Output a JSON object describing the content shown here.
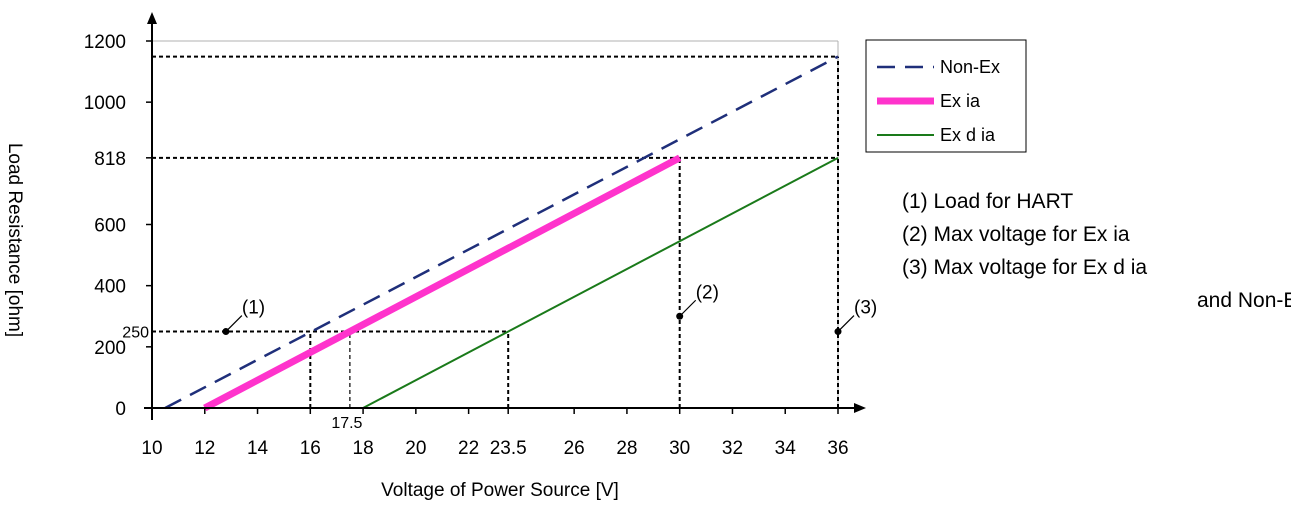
{
  "chart_data": {
    "type": "line",
    "title": "",
    "xlabel": "Voltage of Power Source [V]",
    "ylabel": "Load Resistance [ohm]",
    "xlim": [
      10,
      36
    ],
    "ylim": [
      0,
      1200
    ],
    "x_ticks": [
      {
        "value": 10,
        "label": "10"
      },
      {
        "value": 12,
        "label": "12"
      },
      {
        "value": 14,
        "label": "14"
      },
      {
        "value": 16,
        "label": "16"
      },
      {
        "value": 18,
        "label": "18"
      },
      {
        "value": 20,
        "label": "20"
      },
      {
        "value": 22,
        "label": "22"
      },
      {
        "value": 23.5,
        "label": "23.5"
      },
      {
        "value": 26,
        "label": "26"
      },
      {
        "value": 28,
        "label": "28"
      },
      {
        "value": 30,
        "label": "30"
      },
      {
        "value": 32,
        "label": "32"
      },
      {
        "value": 34,
        "label": "34"
      },
      {
        "value": 36,
        "label": "36"
      }
    ],
    "x_extra_ticks": [
      {
        "value": 17.5,
        "label": "17.5"
      }
    ],
    "y_ticks": [
      {
        "value": 0,
        "label": "0"
      },
      {
        "value": 200,
        "label": "200"
      },
      {
        "value": 400,
        "label": "400"
      },
      {
        "value": 600,
        "label": "600"
      },
      {
        "value": 818,
        "label": "818"
      },
      {
        "value": 1000,
        "label": "1000"
      },
      {
        "value": 1200,
        "label": "1200"
      }
    ],
    "y_extra_ticks": [
      {
        "value": 250,
        "label": "250"
      }
    ],
    "series": [
      {
        "name": "Non-Ex",
        "x": [
          10.5,
          36
        ],
        "y": [
          0,
          1149
        ],
        "color": "#1f2f7a",
        "style": "dashed"
      },
      {
        "name": "Ex ia",
        "x": [
          12,
          30
        ],
        "y": [
          0,
          818
        ],
        "color": "#ff33cc",
        "style": "thick"
      },
      {
        "name": "Ex d ia",
        "x": [
          18,
          36
        ],
        "y": [
          0,
          818
        ],
        "color": "#1a7a1a",
        "style": "solid"
      }
    ],
    "reference_lines": [
      {
        "type": "h",
        "y": 1149,
        "x_end": 36
      },
      {
        "type": "h",
        "y": 818,
        "x_end": 36
      },
      {
        "type": "h",
        "y": 250,
        "x_end": 23.5
      },
      {
        "type": "v",
        "x": 16,
        "y_end": 250
      },
      {
        "type": "v",
        "x": 17.5,
        "y_end": 250
      },
      {
        "type": "v",
        "x": 23.5,
        "y_end": 250
      },
      {
        "type": "v",
        "x": 30,
        "y_end": 818
      },
      {
        "type": "v",
        "x": 36,
        "y_end": 1149
      }
    ],
    "markers": [
      {
        "label": "(1)",
        "x": 12.8,
        "y": 250
      },
      {
        "label": "(2)",
        "x": 30,
        "y": 300
      },
      {
        "label": "(3)",
        "x": 36,
        "y": 250
      }
    ],
    "legend": {
      "position": "right",
      "entries": [
        "Non-Ex",
        "Ex ia",
        "Ex d ia"
      ]
    },
    "notes": [
      "(1)  Load for HART",
      "(2)  Max voltage for Ex ia",
      "(3)  Max voltage for Ex d ia",
      "and Non-Ex"
    ],
    "grid": false
  }
}
